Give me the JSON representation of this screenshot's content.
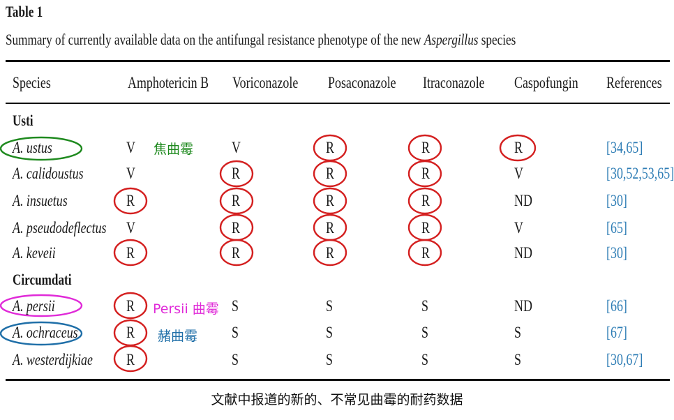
{
  "table": {
    "label": "Table 1",
    "caption_prefix": "Summary of currently available data on the antifungal resistance phenotype of the new ",
    "caption_genus": "Aspergillus",
    "caption_suffix": " species",
    "headers": [
      "Species",
      "Amphotericin B",
      "Voriconazole",
      "Posaconazole",
      "Itraconazole",
      "Caspofungin",
      "References"
    ],
    "groups": [
      {
        "name": "Usti",
        "rows": [
          {
            "species": "A. ustus",
            "values": [
              "V",
              "V",
              "R",
              "R",
              "R"
            ],
            "refs": "[34,65]"
          },
          {
            "species": "A. calidoustus",
            "values": [
              "V",
              "R",
              "R",
              "R",
              "V"
            ],
            "refs": "[30,52,53,65]"
          },
          {
            "species": "A. insuetus",
            "values": [
              "R",
              "R",
              "R",
              "R",
              "ND"
            ],
            "refs": "[30]"
          },
          {
            "species": "A. pseudodeflectus",
            "values": [
              "V",
              "R",
              "R",
              "R",
              "V"
            ],
            "refs": "[65]"
          },
          {
            "species": "A. keveii",
            "values": [
              "R",
              "R",
              "R",
              "R",
              "ND"
            ],
            "refs": "[30]"
          }
        ]
      },
      {
        "name": "Circumdati",
        "rows": [
          {
            "species": "A. persii",
            "values": [
              "R",
              "S",
              "S",
              "S",
              "ND"
            ],
            "refs": "[66]"
          },
          {
            "species": "A. ochraceus",
            "values": [
              "R",
              "S",
              "S",
              "S",
              "S"
            ],
            "refs": "[67]"
          },
          {
            "species": "A. westerdijkiae",
            "values": [
              "R",
              "S",
              "S",
              "S",
              "S"
            ],
            "refs": "[30,67]"
          }
        ]
      }
    ]
  },
  "annotations": {
    "ustus_note": "焦曲霉",
    "persii_note": "Persii 曲霉",
    "ochraceus_note": "赭曲霉",
    "bottom_caption": "文献中报道的新的、不常见曲霉的耐药数据",
    "colors": {
      "resistant_circle": "#d42020",
      "ustus": "#1f8a1f",
      "persii": "#e02ad8",
      "ochraceus": "#1f6fa8",
      "reference": "#2e7db5"
    }
  }
}
